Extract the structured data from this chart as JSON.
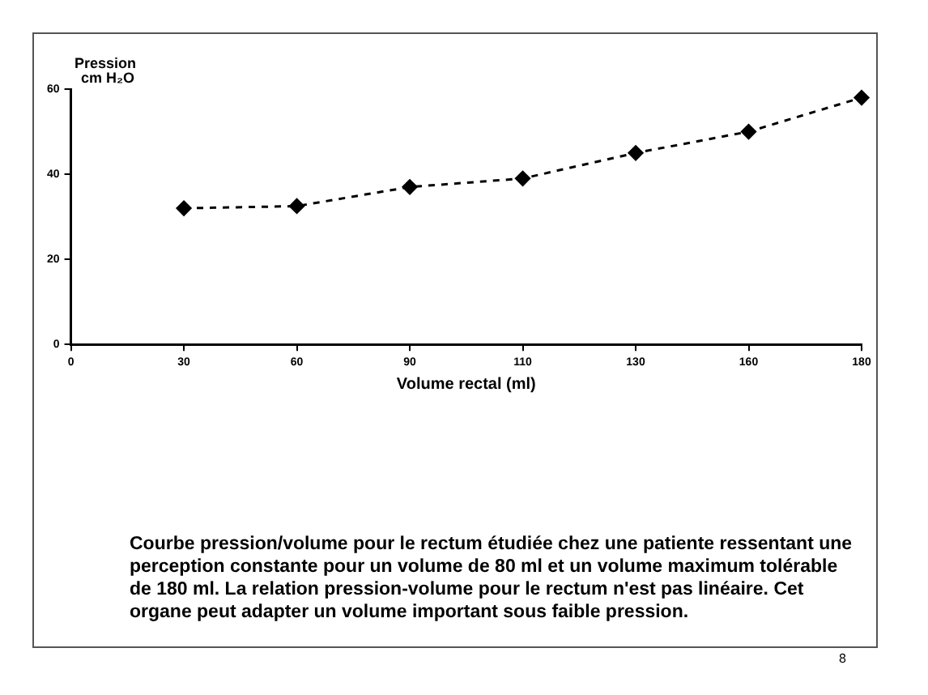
{
  "chart_data": {
    "type": "line",
    "xlabel": "Volume rectal (ml)",
    "ylabel": "Pression\ncm H₂O",
    "categories": [
      "0",
      "30",
      "60",
      "90",
      "110",
      "130",
      "160",
      "180"
    ],
    "values": [
      null,
      32,
      32.5,
      37,
      39,
      45,
      50,
      58
    ],
    "color": "#000000",
    "marker": "diamond",
    "line_style": "dashed",
    "grid": false,
    "legend": false,
    "ylim": [
      0,
      60
    ],
    "yticks": [
      0,
      20,
      40,
      60
    ],
    "annotations": [
      "Courbe pression/volume pour le rectum étudiée chez une patiente ressentant une perception constante pour un volume de 80 ml et un volume maximum tolérable de 180 ml. La relation pression-volume pour le rectum n'est pas linéaire. Cet organe peut adapter un volume important sous faible pression.",
      "8"
    ]
  }
}
